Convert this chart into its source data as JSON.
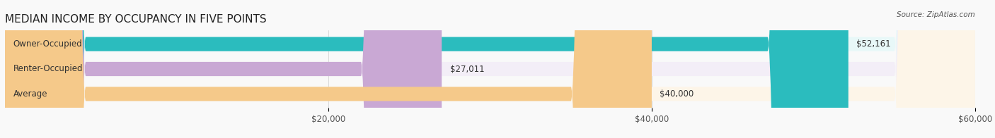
{
  "title": "MEDIAN INCOME BY OCCUPANCY IN FIVE POINTS",
  "source": "Source: ZipAtlas.com",
  "categories": [
    "Owner-Occupied",
    "Renter-Occupied",
    "Average"
  ],
  "values": [
    52161,
    27011,
    40000
  ],
  "labels": [
    "$52,161",
    "$27,011",
    "$40,000"
  ],
  "bar_colors": [
    "#2bbcbe",
    "#c9a8d4",
    "#f5c98a"
  ],
  "bar_bg_colors": [
    "#e8f8f8",
    "#f3eef7",
    "#fdf5e8"
  ],
  "xlim": [
    0,
    60000
  ],
  "xticks": [
    0,
    20000,
    40000,
    60000
  ],
  "xtick_labels": [
    "$20,000",
    "$40,000",
    "$60,000"
  ],
  "title_fontsize": 11,
  "label_fontsize": 8.5,
  "bar_height": 0.55,
  "figsize": [
    14.06,
    1.96
  ],
  "dpi": 100
}
